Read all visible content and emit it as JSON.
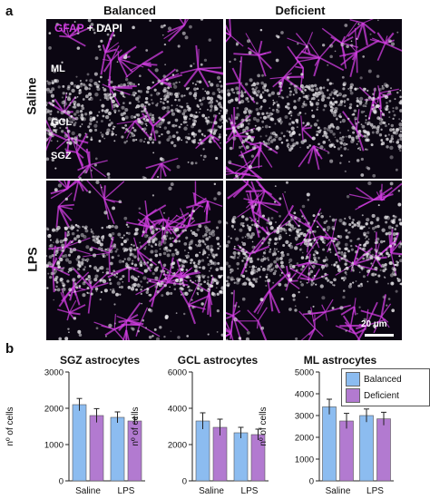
{
  "panel_a": {
    "letter": "a",
    "columns": [
      "Balanced",
      "Deficient"
    ],
    "rows": [
      "Saline",
      "LPS"
    ],
    "stain_gfap": "GFAP",
    "stain_plus": " + DAPI",
    "layers": [
      "ML",
      "GCL",
      "SGZ"
    ],
    "scalebar": "20 µm",
    "colors": {
      "gfap": "#d03ee0",
      "dapi": "#e8e6ea",
      "bg": "#0b0612"
    }
  },
  "panel_b": {
    "letter": "b",
    "legend": [
      {
        "name": "Balanced",
        "color": "#8cbcf0"
      },
      {
        "name": "Deficient",
        "color": "#b27ad0"
      }
    ]
  },
  "chart_data": [
    {
      "type": "bar",
      "title": "SGZ astrocytes",
      "ylabel": "nº of cells",
      "xlabel": "",
      "categories": [
        "Saline",
        "LPS"
      ],
      "ylim": [
        0,
        3000
      ],
      "yticks": [
        0,
        1000,
        2000,
        3000
      ],
      "series": [
        {
          "name": "Balanced",
          "values": [
            2100,
            1750
          ],
          "errors": [
            170,
            150
          ]
        },
        {
          "name": "Deficient",
          "values": [
            1800,
            1650
          ],
          "errors": [
            190,
            90
          ]
        }
      ]
    },
    {
      "type": "bar",
      "title": "GCL astrocytes",
      "ylabel": "nº of cells",
      "xlabel": "",
      "categories": [
        "Saline",
        "LPS"
      ],
      "ylim": [
        0,
        6000
      ],
      "yticks": [
        0,
        2000,
        4000,
        6000
      ],
      "series": [
        {
          "name": "Balanced",
          "values": [
            3300,
            2650
          ],
          "errors": [
            450,
            300
          ]
        },
        {
          "name": "Deficient",
          "values": [
            2950,
            2550
          ],
          "errors": [
            450,
            300
          ]
        }
      ]
    },
    {
      "type": "bar",
      "title": "ML astrocytes",
      "ylabel": "nº of cells",
      "xlabel": "",
      "categories": [
        "Saline",
        "LPS"
      ],
      "ylim": [
        0,
        5000
      ],
      "yticks": [
        0,
        1000,
        2000,
        3000,
        4000,
        5000
      ],
      "series": [
        {
          "name": "Balanced",
          "values": [
            3400,
            3000
          ],
          "errors": [
            350,
            300
          ]
        },
        {
          "name": "Deficient",
          "values": [
            2750,
            2850
          ],
          "errors": [
            350,
            300
          ]
        }
      ]
    }
  ]
}
